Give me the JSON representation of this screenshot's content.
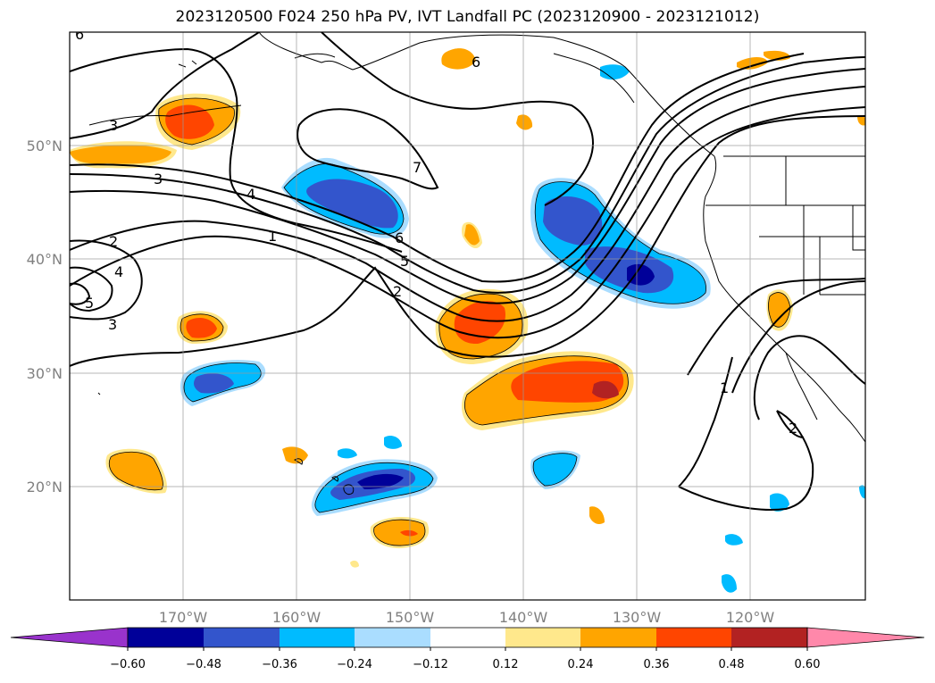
{
  "title": "2023120500 F024 250 hPa PV, IVT Landfall PC (2023120900 - 2023121012)",
  "map": {
    "lon_range": [
      -180,
      -110
    ],
    "lat_range": [
      10,
      60
    ],
    "lat_labels": [
      "20°N",
      "30°N",
      "40°N",
      "50°N"
    ],
    "lon_labels": [
      "170°W",
      "160°W",
      "150°W",
      "140°W",
      "130°W",
      "120°W"
    ],
    "contour_labels": [
      "3",
      "3",
      "4",
      "1",
      "2",
      "4",
      "5",
      "3",
      "7",
      "6",
      "6",
      "5",
      "2",
      "1",
      "2",
      "6"
    ]
  },
  "colorbar": {
    "colors": [
      "#9933cc",
      "#000099",
      "#3355cc",
      "#00bbff",
      "#aaddff",
      "#ffffff",
      "#ffe88c",
      "#ffa500",
      "#ff4500",
      "#b22222",
      "#ff88aa"
    ],
    "tick_labels": [
      "−0.60",
      "−0.48",
      "−0.36",
      "−0.24",
      "−0.12",
      "0.12",
      "0.24",
      "0.36",
      "0.48",
      "0.60"
    ]
  }
}
